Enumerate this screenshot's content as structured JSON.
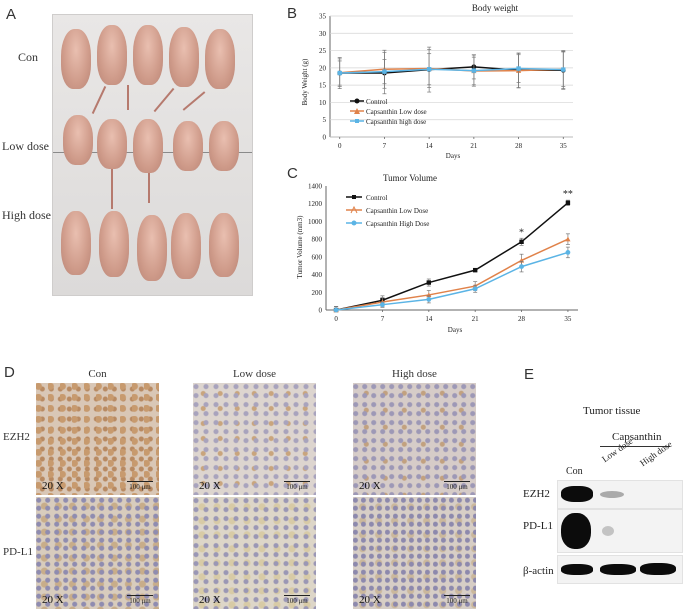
{
  "panels": {
    "a": {
      "letter": "A",
      "rows": [
        "Con",
        "Low dose",
        "High dose"
      ]
    },
    "b": {
      "letter": "B"
    },
    "c": {
      "letter": "C"
    },
    "d": {
      "letter": "D",
      "columns": [
        "Con",
        "Low dose",
        "High dose"
      ],
      "rows": [
        "EZH2",
        "PD-L1"
      ],
      "magnification": "20 X",
      "scale": "100 μm"
    },
    "e": {
      "letter": "E",
      "title": "Tumor tissue",
      "group": "Capsanthin",
      "lanes": [
        "Con",
        "Low dose",
        "High dose"
      ],
      "proteins": [
        "EZH2",
        "PD-L1",
        "β-actin"
      ]
    }
  },
  "chart_data": [
    {
      "type": "line",
      "title": "Body weight",
      "xlabel": "Days",
      "ylabel": "Body Weight (g)",
      "x": [
        0,
        7,
        14,
        21,
        28,
        35
      ],
      "xticks": [
        "0",
        "7",
        "14",
        "21",
        "28",
        "35"
      ],
      "ylim": [
        0,
        35
      ],
      "yticks": [
        "0",
        "5",
        "10",
        "15",
        "20",
        "25",
        "30",
        "35"
      ],
      "grid": true,
      "legend": "bottom-left",
      "series": [
        {
          "name": "Control",
          "color": "#111111",
          "values": [
            18.5,
            18.5,
            19.5,
            20.3,
            19.3,
            19.3
          ],
          "errors": [
            4.5,
            6.0,
            6.5,
            3.5,
            5.0,
            5.5
          ]
        },
        {
          "name": "Capsanthin Low dose",
          "color": "#e0824a",
          "values": [
            18.6,
            19.6,
            19.8,
            19.1,
            19.2,
            19.6
          ],
          "errors": [
            4.0,
            5.5,
            5.5,
            4.0,
            5.0,
            5.0
          ]
        },
        {
          "name": "Capsanthin high dose",
          "color": "#5bb4e5",
          "values": [
            18.5,
            18.9,
            19.6,
            19.2,
            19.8,
            19.5
          ],
          "errors": [
            3.5,
            3.5,
            4.5,
            4.5,
            4.0,
            5.5
          ]
        }
      ]
    },
    {
      "type": "line",
      "title": "Tumor Volume",
      "xlabel": "Days",
      "ylabel": "Tumor Volume (mm3)",
      "x": [
        0,
        7,
        14,
        21,
        28,
        35
      ],
      "xticks": [
        "0",
        "7",
        "14",
        "21",
        "28",
        "35"
      ],
      "ylim": [
        0,
        1400
      ],
      "yticks": [
        "0",
        "200",
        "400",
        "600",
        "800",
        "1000",
        "1200",
        "1400"
      ],
      "grid": false,
      "legend": "top-left",
      "annotations": [
        {
          "x": 28,
          "text": "*"
        },
        {
          "x": 35,
          "text": "**"
        }
      ],
      "series": [
        {
          "name": "Control",
          "color": "#111111",
          "values": [
            0,
            110,
            310,
            450,
            770,
            1210
          ],
          "errors": [
            40,
            50,
            40,
            20,
            40,
            30
          ]
        },
        {
          "name": "Capsanthin Low Dose",
          "color": "#e0824a",
          "values": [
            0,
            90,
            170,
            270,
            560,
            800
          ],
          "errors": [
            40,
            50,
            50,
            50,
            70,
            60
          ]
        },
        {
          "name": "Capsanthin High Dose",
          "color": "#5bb4e5",
          "values": [
            0,
            60,
            120,
            240,
            490,
            650
          ],
          "errors": [
            40,
            30,
            40,
            40,
            60,
            60
          ]
        }
      ]
    }
  ]
}
